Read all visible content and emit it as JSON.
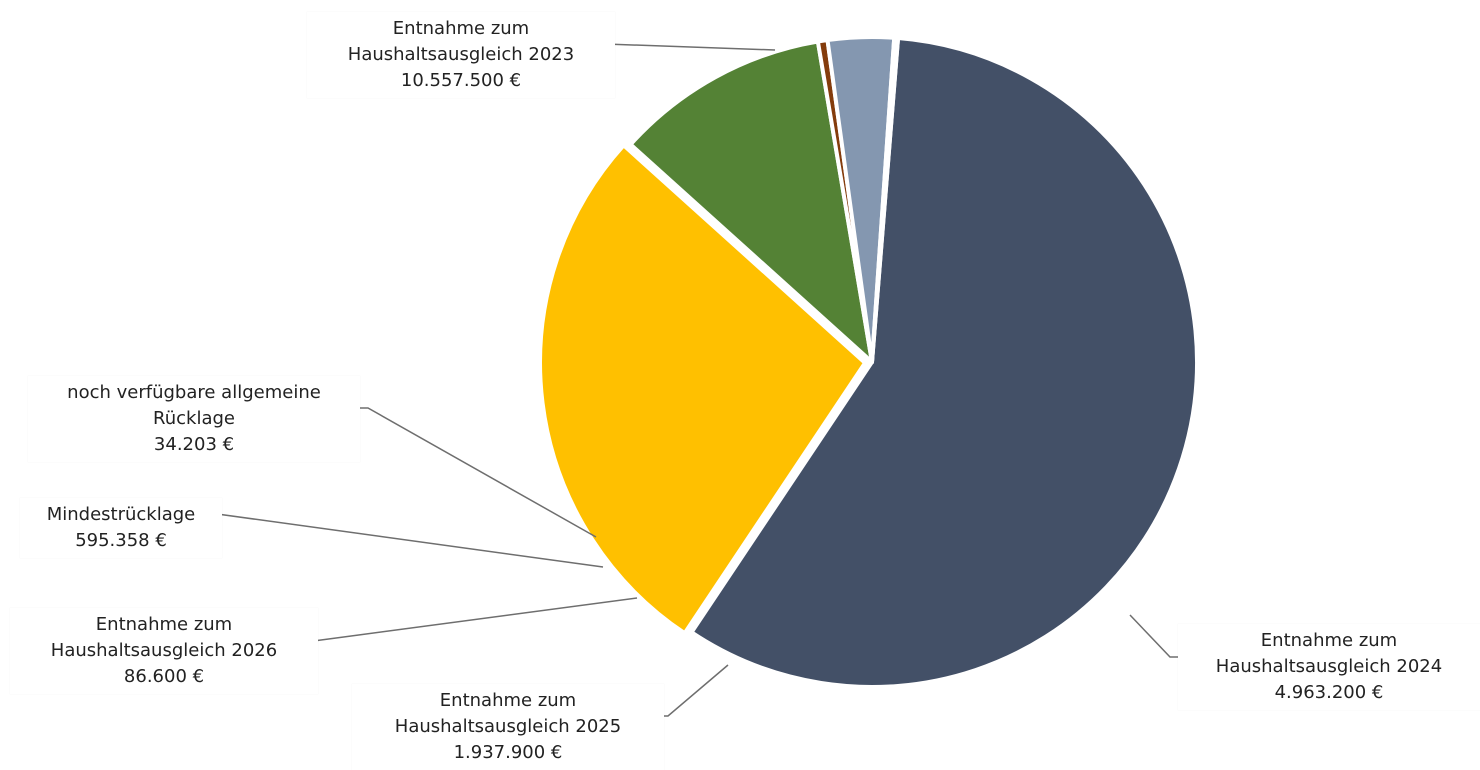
{
  "chart_data": {
    "type": "pie",
    "title": "",
    "start_angle_deg": 85.4,
    "series": [
      {
        "name": "Entnahme zum Haushaltsausgleich 2023",
        "label_lines": [
          "Entnahme zum",
          "Haushaltsausgleich 2023"
        ],
        "value": 10557500,
        "value_label": "10.557.500 €",
        "color": "#435067"
      },
      {
        "name": "Entnahme zum Haushaltsausgleich 2024",
        "label_lines": [
          "Entnahme zum",
          "Haushaltsausgleich 2024"
        ],
        "value": 4963200,
        "value_label": "4.963.200 €",
        "color": "#FFC000"
      },
      {
        "name": "Entnahme zum Haushaltsausgleich 2025",
        "label_lines": [
          "Entnahme zum",
          "Haushaltsausgleich 2025"
        ],
        "value": 1937900,
        "value_label": "1.937.900 €",
        "color": "#548235"
      },
      {
        "name": "Entnahme zum Haushaltsausgleich 2026",
        "label_lines": [
          "Entnahme zum",
          "Haushaltsausgleich 2026"
        ],
        "value": 86600,
        "value_label": "86.600 €",
        "color": "#843C0C"
      },
      {
        "name": "Mindestrücklage",
        "label_lines": [
          "Mindestrücklage"
        ],
        "value": 595358,
        "value_label": "595.358 €",
        "color": "#8497B0"
      },
      {
        "name": "noch verfügbare allgemeine Rücklage",
        "label_lines": [
          "noch verfügbare allgemeine",
          "Rücklage"
        ],
        "value": 34203,
        "value_label": "34.203 €",
        "color": "#70AD47"
      }
    ]
  }
}
